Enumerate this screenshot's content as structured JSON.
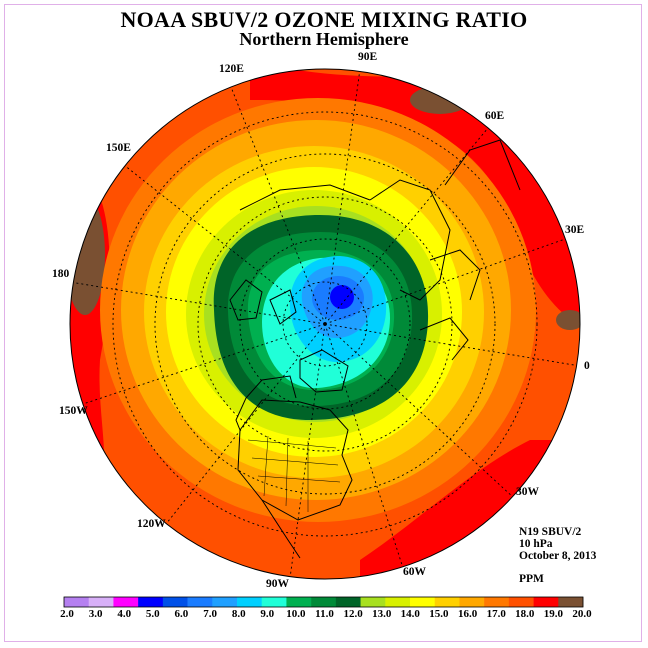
{
  "header": {
    "title": "NOAA SBUV/2 OZONE MIXING RATIO",
    "subtitle": "Northern Hemisphere"
  },
  "map": {
    "longitude_labels": [
      "90E",
      "60E",
      "30E",
      "0",
      "30W",
      "60W",
      "90W",
      "120W",
      "150W",
      "180",
      "150E",
      "120E"
    ],
    "instrument": "N19 SBUV/2",
    "pressure_level": "10 hPa",
    "date": "October 8, 2013",
    "units": "PPM"
  },
  "colorbar": {
    "labels": [
      "2.0",
      "3.0",
      "4.0",
      "5.0",
      "6.0",
      "7.0",
      "8.0",
      "9.0",
      "10.0",
      "11.0",
      "12.0",
      "13.0",
      "14.0",
      "15.0",
      "16.0",
      "17.0",
      "18.0",
      "19.0",
      "20.0"
    ],
    "colors": [
      "#b580f0",
      "#d8b0f8",
      "#ff00ff",
      "#0000ff",
      "#0050e8",
      "#1a7cff",
      "#20a0ff",
      "#00d0ff",
      "#20ffd8",
      "#00b050",
      "#008a38",
      "#006428",
      "#a8e020",
      "#d8f000",
      "#ffff00",
      "#ffd000",
      "#ffa800",
      "#ff7800",
      "#ff5000",
      "#ff0000",
      "#7a5032"
    ]
  }
}
